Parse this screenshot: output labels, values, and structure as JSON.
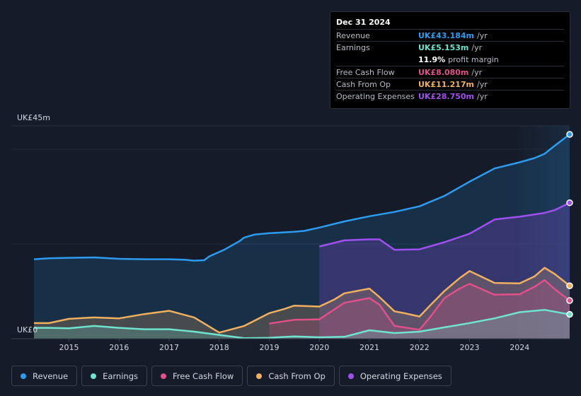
{
  "tooltip": {
    "date": "Dec 31 2024",
    "rows": [
      {
        "label": "Revenue",
        "value": "UK£43.184m",
        "unit": "/yr",
        "color": "#2d9cf0"
      },
      {
        "label": "Earnings",
        "value": "UK£5.153m",
        "unit": "/yr",
        "color": "#6fe3d0"
      },
      {
        "label": "",
        "value": "11.9%",
        "unit": "profit margin",
        "color": "#ffffff"
      },
      {
        "label": "Free Cash Flow",
        "value": "UK£8.080m",
        "unit": "/yr",
        "color": "#e0508a"
      },
      {
        "label": "Cash From Op",
        "value": "UK£11.217m",
        "unit": "/yr",
        "color": "#f0b060"
      },
      {
        "label": "Operating Expenses",
        "value": "UK£28.750m",
        "unit": "/yr",
        "color": "#a050f0"
      }
    ]
  },
  "legend": [
    {
      "label": "Revenue",
      "color": "#2d9cf0"
    },
    {
      "label": "Earnings",
      "color": "#6fe3d0"
    },
    {
      "label": "Free Cash Flow",
      "color": "#e0508a"
    },
    {
      "label": "Cash From Op",
      "color": "#f0b060"
    },
    {
      "label": "Operating Expenses",
      "color": "#a050f0"
    }
  ],
  "chart_data": {
    "type": "area",
    "title": "",
    "y_top_label": "UK£45m",
    "y_bottom_label": "UK£0",
    "ylim": [
      0,
      45
    ],
    "xlim": [
      2014.3,
      2025.0
    ],
    "x_ticks": [
      "2015",
      "2016",
      "2017",
      "2018",
      "2019",
      "2020",
      "2021",
      "2022",
      "2023",
      "2024"
    ],
    "forecast_start": 2024.0,
    "series": [
      {
        "name": "Revenue",
        "color": "#2d9cf0",
        "fill": true,
        "points": [
          [
            2014.3,
            16.8
          ],
          [
            2014.6,
            17.0
          ],
          [
            2015.0,
            17.1
          ],
          [
            2015.5,
            17.2
          ],
          [
            2016.0,
            16.9
          ],
          [
            2016.5,
            16.8
          ],
          [
            2017.0,
            16.8
          ],
          [
            2017.3,
            16.7
          ],
          [
            2017.5,
            16.5
          ],
          [
            2017.7,
            16.6
          ],
          [
            2017.8,
            17.4
          ],
          [
            2018.1,
            18.8
          ],
          [
            2018.4,
            20.6
          ],
          [
            2018.5,
            21.4
          ],
          [
            2018.7,
            22.0
          ],
          [
            2019.0,
            22.3
          ],
          [
            2019.5,
            22.6
          ],
          [
            2019.7,
            22.8
          ],
          [
            2020.0,
            23.5
          ],
          [
            2020.5,
            24.8
          ],
          [
            2021.0,
            25.9
          ],
          [
            2021.5,
            26.8
          ],
          [
            2022.0,
            28.0
          ],
          [
            2022.5,
            30.2
          ],
          [
            2023.0,
            33.2
          ],
          [
            2023.5,
            36.0
          ],
          [
            2024.0,
            37.3
          ],
          [
            2024.3,
            38.2
          ],
          [
            2024.5,
            39.1
          ],
          [
            2024.7,
            40.8
          ],
          [
            2025.0,
            43.2
          ]
        ]
      },
      {
        "name": "Operating Expenses",
        "color": "#a050f0",
        "fill": true,
        "points": [
          [
            2020.0,
            19.5
          ],
          [
            2020.5,
            20.8
          ],
          [
            2021.0,
            21.0
          ],
          [
            2021.2,
            21.0
          ],
          [
            2021.5,
            18.8
          ],
          [
            2022.0,
            18.9
          ],
          [
            2022.5,
            20.4
          ],
          [
            2023.0,
            22.2
          ],
          [
            2023.5,
            25.2
          ],
          [
            2024.0,
            25.8
          ],
          [
            2024.5,
            26.6
          ],
          [
            2024.7,
            27.2
          ],
          [
            2025.0,
            28.75
          ]
        ]
      },
      {
        "name": "Cash From Op",
        "color": "#f0b060",
        "fill": true,
        "points": [
          [
            2014.3,
            3.3
          ],
          [
            2014.6,
            3.3
          ],
          [
            2015.0,
            4.2
          ],
          [
            2015.5,
            4.5
          ],
          [
            2016.0,
            4.3
          ],
          [
            2016.5,
            5.2
          ],
          [
            2017.0,
            5.9
          ],
          [
            2017.5,
            4.5
          ],
          [
            2018.0,
            1.3
          ],
          [
            2018.5,
            2.7
          ],
          [
            2019.0,
            5.4
          ],
          [
            2019.3,
            6.3
          ],
          [
            2019.5,
            7.0
          ],
          [
            2020.0,
            6.8
          ],
          [
            2020.3,
            8.3
          ],
          [
            2020.5,
            9.6
          ],
          [
            2021.0,
            10.6
          ],
          [
            2021.2,
            8.8
          ],
          [
            2021.5,
            5.8
          ],
          [
            2021.7,
            5.4
          ],
          [
            2022.0,
            4.7
          ],
          [
            2022.2,
            6.9
          ],
          [
            2022.5,
            10.1
          ],
          [
            2022.8,
            12.8
          ],
          [
            2023.0,
            14.3
          ],
          [
            2023.5,
            11.8
          ],
          [
            2024.0,
            11.7
          ],
          [
            2024.3,
            13.2
          ],
          [
            2024.5,
            15.0
          ],
          [
            2024.7,
            13.7
          ],
          [
            2025.0,
            11.2
          ]
        ]
      },
      {
        "name": "Free Cash Flow",
        "color": "#e0508a",
        "fill": true,
        "points": [
          [
            2019.0,
            3.2
          ],
          [
            2019.5,
            4.0
          ],
          [
            2020.0,
            4.1
          ],
          [
            2020.5,
            7.6
          ],
          [
            2021.0,
            8.6
          ],
          [
            2021.2,
            7.2
          ],
          [
            2021.5,
            2.7
          ],
          [
            2022.0,
            1.9
          ],
          [
            2022.2,
            4.4
          ],
          [
            2022.5,
            8.6
          ],
          [
            2022.8,
            10.6
          ],
          [
            2023.0,
            11.6
          ],
          [
            2023.5,
            9.3
          ],
          [
            2024.0,
            9.4
          ],
          [
            2024.3,
            11.0
          ],
          [
            2024.5,
            12.4
          ],
          [
            2024.7,
            10.5
          ],
          [
            2025.0,
            8.08
          ]
        ]
      },
      {
        "name": "Earnings",
        "color": "#6fe3d0",
        "fill": true,
        "points": [
          [
            2014.3,
            2.3
          ],
          [
            2014.6,
            2.3
          ],
          [
            2015.0,
            2.2
          ],
          [
            2015.5,
            2.7
          ],
          [
            2016.0,
            2.3
          ],
          [
            2016.5,
            2.0
          ],
          [
            2017.0,
            2.0
          ],
          [
            2017.5,
            1.5
          ],
          [
            2018.0,
            0.8
          ],
          [
            2018.5,
            0.1
          ],
          [
            2019.0,
            0.2
          ],
          [
            2019.5,
            0.5
          ],
          [
            2020.0,
            0.3
          ],
          [
            2020.5,
            0.4
          ],
          [
            2021.0,
            1.8
          ],
          [
            2021.5,
            1.2
          ],
          [
            2022.0,
            1.5
          ],
          [
            2022.5,
            2.4
          ],
          [
            2023.0,
            3.3
          ],
          [
            2023.5,
            4.3
          ],
          [
            2024.0,
            5.6
          ],
          [
            2024.3,
            5.9
          ],
          [
            2024.5,
            6.1
          ],
          [
            2025.0,
            5.15
          ]
        ]
      }
    ]
  }
}
